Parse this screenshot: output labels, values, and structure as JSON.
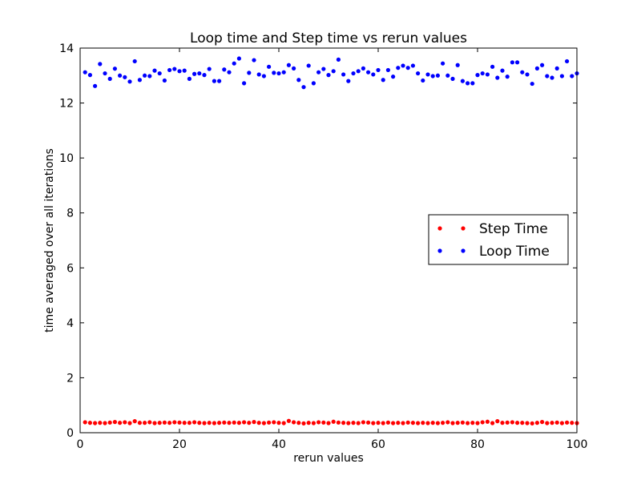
{
  "chart_data": {
    "type": "scatter",
    "title": "Loop time and Step time vs rerun values",
    "xlabel": "rerun values",
    "ylabel": "time averaged over all iterations",
    "xlim": [
      0,
      100
    ],
    "ylim": [
      0,
      14
    ],
    "xticks": [
      0,
      20,
      40,
      60,
      80,
      100
    ],
    "yticks": [
      0,
      2,
      4,
      6,
      8,
      10,
      12,
      14
    ],
    "grid": false,
    "legend_position": "center-right",
    "x": [
      1,
      2,
      3,
      4,
      5,
      6,
      7,
      8,
      9,
      10,
      11,
      12,
      13,
      14,
      15,
      16,
      17,
      18,
      19,
      20,
      21,
      22,
      23,
      24,
      25,
      26,
      27,
      28,
      29,
      30,
      31,
      32,
      33,
      34,
      35,
      36,
      37,
      38,
      39,
      40,
      41,
      42,
      43,
      44,
      45,
      46,
      47,
      48,
      49,
      50,
      51,
      52,
      53,
      54,
      55,
      56,
      57,
      58,
      59,
      60,
      61,
      62,
      63,
      64,
      65,
      66,
      67,
      68,
      69,
      70,
      71,
      72,
      73,
      74,
      75,
      76,
      77,
      78,
      79,
      80,
      81,
      82,
      83,
      84,
      85,
      86,
      87,
      88,
      89,
      90,
      91,
      92,
      93,
      94,
      95,
      96,
      97,
      98,
      99,
      100
    ],
    "series": [
      {
        "name": "Step Time",
        "color": "#ff0000",
        "values": [
          0.38,
          0.36,
          0.35,
          0.36,
          0.35,
          0.37,
          0.39,
          0.36,
          0.38,
          0.35,
          0.42,
          0.36,
          0.36,
          0.38,
          0.35,
          0.36,
          0.37,
          0.36,
          0.38,
          0.37,
          0.36,
          0.36,
          0.38,
          0.36,
          0.35,
          0.36,
          0.35,
          0.36,
          0.37,
          0.36,
          0.37,
          0.36,
          0.38,
          0.36,
          0.39,
          0.36,
          0.35,
          0.37,
          0.38,
          0.36,
          0.35,
          0.43,
          0.38,
          0.36,
          0.34,
          0.36,
          0.35,
          0.38,
          0.37,
          0.35,
          0.4,
          0.37,
          0.36,
          0.35,
          0.36,
          0.35,
          0.38,
          0.37,
          0.35,
          0.36,
          0.35,
          0.37,
          0.35,
          0.36,
          0.35,
          0.37,
          0.36,
          0.35,
          0.36,
          0.35,
          0.36,
          0.35,
          0.36,
          0.38,
          0.35,
          0.36,
          0.37,
          0.35,
          0.36,
          0.35,
          0.38,
          0.4,
          0.35,
          0.42,
          0.36,
          0.37,
          0.38,
          0.36,
          0.36,
          0.35,
          0.34,
          0.36,
          0.39,
          0.35,
          0.36,
          0.37,
          0.35,
          0.37,
          0.36,
          0.35
        ]
      },
      {
        "name": "Loop Time",
        "color": "#0000ff",
        "values": [
          13.12,
          13.02,
          12.62,
          13.42,
          13.08,
          12.88,
          13.25,
          13.0,
          12.94,
          12.78,
          13.52,
          12.84,
          13.0,
          12.98,
          13.18,
          13.08,
          12.82,
          13.2,
          13.24,
          13.16,
          13.18,
          12.88,
          13.06,
          13.08,
          13.02,
          13.24,
          12.8,
          12.8,
          13.22,
          13.12,
          13.44,
          13.62,
          12.72,
          13.1,
          13.56,
          13.04,
          12.98,
          13.32,
          13.1,
          13.08,
          13.12,
          13.38,
          13.26,
          12.84,
          12.58,
          13.36,
          12.72,
          13.12,
          13.24,
          13.02,
          13.16,
          13.58,
          13.04,
          12.8,
          13.08,
          13.16,
          13.26,
          13.12,
          13.04,
          13.2,
          12.84,
          13.2,
          12.96,
          13.28,
          13.36,
          13.28,
          13.36,
          13.08,
          12.82,
          13.04,
          12.98,
          13.0,
          13.44,
          13.0,
          12.88,
          13.38,
          12.8,
          12.72,
          12.72,
          13.02,
          13.08,
          13.04,
          13.32,
          12.92,
          13.18,
          12.96,
          13.48,
          13.48,
          13.12,
          13.04,
          12.7,
          13.26,
          13.38,
          12.98,
          12.92,
          13.26,
          12.98,
          13.52,
          12.98,
          13.08
        ]
      }
    ]
  }
}
